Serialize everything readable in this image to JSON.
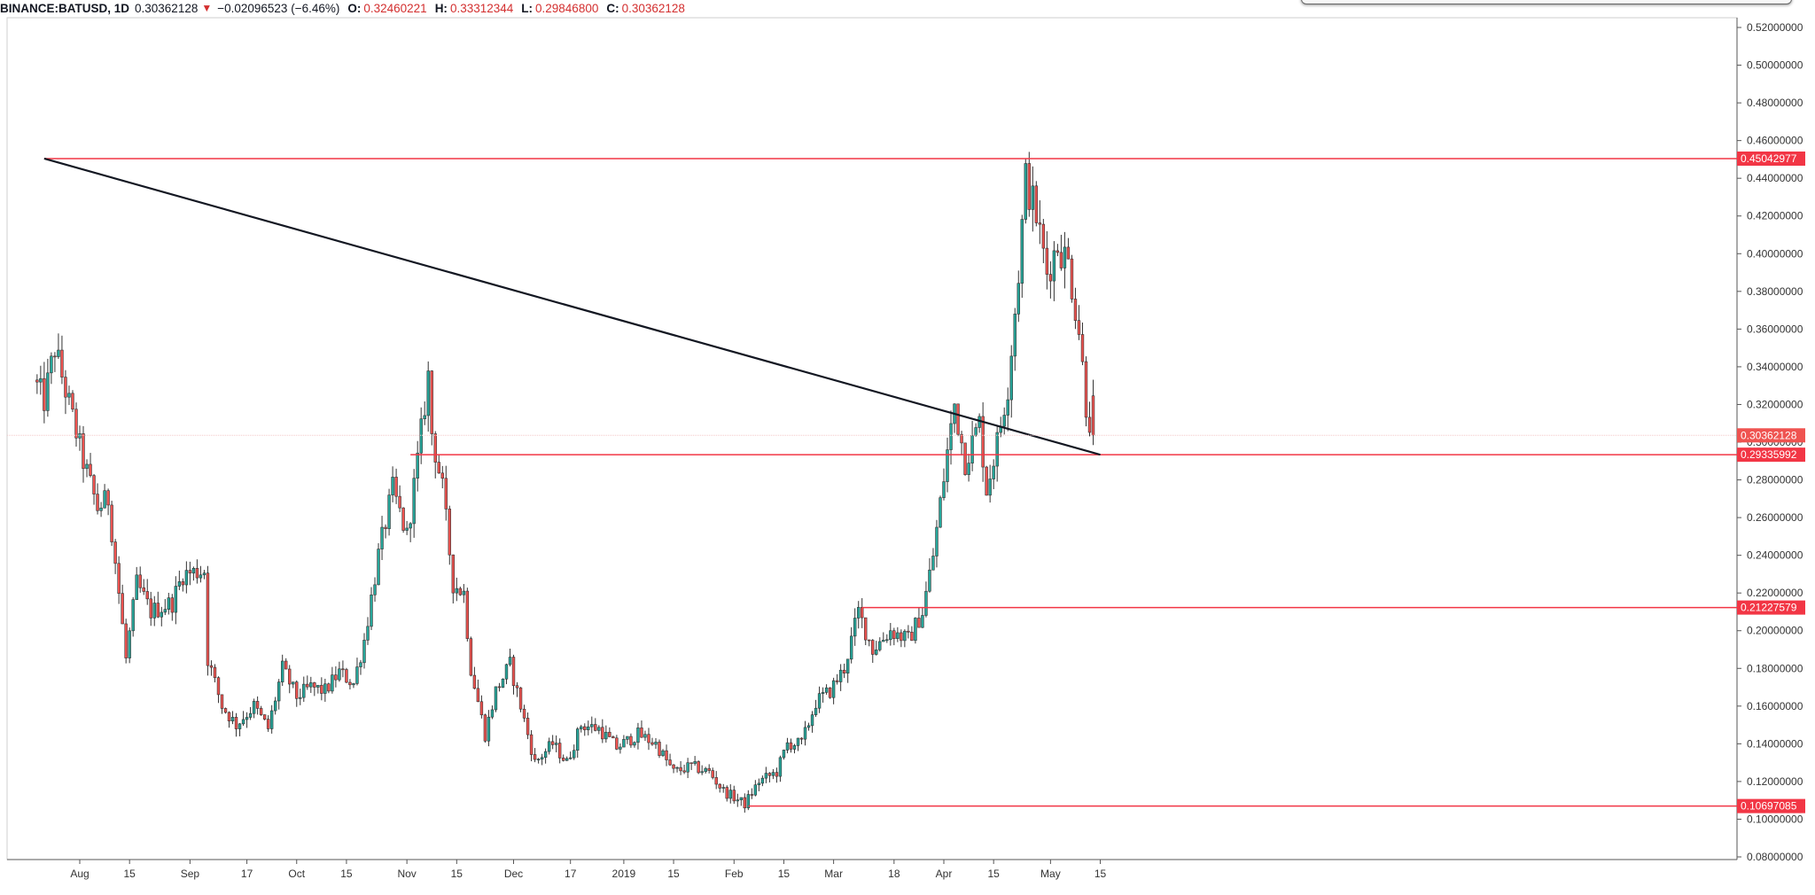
{
  "header": {
    "symbol": "BINANCE:BATUSD, 1D",
    "last": "0.30362128",
    "direction_icon": "triangle-down-icon",
    "change": "−0.02096523 (−6.46%)",
    "open_label": "O:",
    "open": "0.32460221",
    "high_label": "H:",
    "high": "0.33312344",
    "low_label": "L:",
    "low": "0.29846800",
    "close_label": "C:",
    "close": "0.30362128"
  },
  "colors": {
    "up": "#26a69a",
    "down": "#ef5350",
    "level_line": "#f23645",
    "trend_line": "#131722",
    "current_price": "#ef5350"
  },
  "chart_data": {
    "type": "candlestick",
    "symbol": "BINANCE:BATUSD",
    "interval": "1D",
    "ylim": [
      0.08,
      0.52
    ],
    "y_ticks": [
      "0.52000000",
      "0.50000000",
      "0.48000000",
      "0.46000000",
      "0.44000000",
      "0.42000000",
      "0.40000000",
      "0.38000000",
      "0.36000000",
      "0.34000000",
      "0.32000000",
      "0.30000000",
      "0.28000000",
      "0.26000000",
      "0.24000000",
      "0.22000000",
      "0.20000000",
      "0.18000000",
      "0.16000000",
      "0.14000000",
      "0.12000000",
      "0.10000000",
      "0.08000000"
    ],
    "x_ticks": [
      {
        "label": "Aug",
        "date": "2018-08-01"
      },
      {
        "label": "15",
        "date": "2018-08-15"
      },
      {
        "label": "Sep",
        "date": "2018-09-01"
      },
      {
        "label": "17",
        "date": "2018-09-17"
      },
      {
        "label": "Oct",
        "date": "2018-10-01"
      },
      {
        "label": "15",
        "date": "2018-10-15"
      },
      {
        "label": "Nov",
        "date": "2018-11-01"
      },
      {
        "label": "15",
        "date": "2018-11-15"
      },
      {
        "label": "Dec",
        "date": "2018-12-01"
      },
      {
        "label": "17",
        "date": "2018-12-17"
      },
      {
        "label": "2019",
        "date": "2019-01-01"
      },
      {
        "label": "15",
        "date": "2019-01-15"
      },
      {
        "label": "Feb",
        "date": "2019-02-01"
      },
      {
        "label": "15",
        "date": "2019-02-15"
      },
      {
        "label": "Mar",
        "date": "2019-03-01"
      },
      {
        "label": "18",
        "date": "2019-03-18"
      },
      {
        "label": "Apr",
        "date": "2019-04-01"
      },
      {
        "label": "15",
        "date": "2019-04-15"
      },
      {
        "label": "May",
        "date": "2019-05-01"
      },
      {
        "label": "15",
        "date": "2019-05-15"
      }
    ],
    "price_path": [
      [
        "2018-07-19",
        0.333
      ],
      [
        "2018-07-22",
        0.322
      ],
      [
        "2018-07-25",
        0.35
      ],
      [
        "2018-07-29",
        0.32
      ],
      [
        "2018-08-02",
        0.29
      ],
      [
        "2018-08-06",
        0.265
      ],
      [
        "2018-08-09",
        0.27
      ],
      [
        "2018-08-12",
        0.22
      ],
      [
        "2018-08-14",
        0.185
      ],
      [
        "2018-08-17",
        0.225
      ],
      [
        "2018-08-21",
        0.21
      ],
      [
        "2018-08-27",
        0.215
      ],
      [
        "2018-08-30",
        0.23
      ],
      [
        "2018-09-05",
        0.232
      ],
      [
        "2018-09-06",
        0.185
      ],
      [
        "2018-09-10",
        0.16
      ],
      [
        "2018-09-14",
        0.15
      ],
      [
        "2018-09-19",
        0.16
      ],
      [
        "2018-09-23",
        0.148
      ],
      [
        "2018-09-27",
        0.18
      ],
      [
        "2018-10-01",
        0.165
      ],
      [
        "2018-10-05",
        0.17
      ],
      [
        "2018-10-09",
        0.168
      ],
      [
        "2018-10-13",
        0.178
      ],
      [
        "2018-10-17",
        0.172
      ],
      [
        "2018-10-20",
        0.195
      ],
      [
        "2018-10-24",
        0.24
      ],
      [
        "2018-10-28",
        0.275
      ],
      [
        "2018-11-01",
        0.25
      ],
      [
        "2018-11-04",
        0.29
      ],
      [
        "2018-11-07",
        0.335
      ],
      [
        "2018-11-08",
        0.305
      ],
      [
        "2018-11-11",
        0.275
      ],
      [
        "2018-11-14",
        0.225
      ],
      [
        "2018-11-17",
        0.22
      ],
      [
        "2018-11-19",
        0.18
      ],
      [
        "2018-11-23",
        0.145
      ],
      [
        "2018-11-26",
        0.168
      ],
      [
        "2018-11-30",
        0.182
      ],
      [
        "2018-12-03",
        0.16
      ],
      [
        "2018-12-07",
        0.13
      ],
      [
        "2018-12-12",
        0.14
      ],
      [
        "2018-12-16",
        0.13
      ],
      [
        "2018-12-20",
        0.15
      ],
      [
        "2018-12-25",
        0.148
      ],
      [
        "2018-12-30",
        0.138
      ],
      [
        "2019-01-05",
        0.145
      ],
      [
        "2019-01-10",
        0.14
      ],
      [
        "2019-01-15",
        0.125
      ],
      [
        "2019-01-20",
        0.128
      ],
      [
        "2019-01-25",
        0.125
      ],
      [
        "2019-01-29",
        0.115
      ],
      [
        "2019-02-04",
        0.108
      ],
      [
        "2019-02-08",
        0.12
      ],
      [
        "2019-02-13",
        0.125
      ],
      [
        "2019-02-16",
        0.14
      ],
      [
        "2019-02-20",
        0.14
      ],
      [
        "2019-02-24",
        0.162
      ],
      [
        "2019-02-28",
        0.168
      ],
      [
        "2019-03-04",
        0.18
      ],
      [
        "2019-03-08",
        0.21
      ],
      [
        "2019-03-12",
        0.19
      ],
      [
        "2019-03-17",
        0.2
      ],
      [
        "2019-03-22",
        0.195
      ],
      [
        "2019-03-26",
        0.21
      ],
      [
        "2019-03-29",
        0.24
      ],
      [
        "2019-04-02",
        0.295
      ],
      [
        "2019-04-04",
        0.32
      ],
      [
        "2019-04-07",
        0.29
      ],
      [
        "2019-04-11",
        0.31
      ],
      [
        "2019-04-13",
        0.275
      ],
      [
        "2019-04-16",
        0.3
      ],
      [
        "2019-04-19",
        0.33
      ],
      [
        "2019-04-22",
        0.39
      ],
      [
        "2019-04-24",
        0.44
      ],
      [
        "2019-04-27",
        0.42
      ],
      [
        "2019-04-30",
        0.39
      ],
      [
        "2019-05-03",
        0.405
      ],
      [
        "2019-05-06",
        0.395
      ],
      [
        "2019-05-09",
        0.36
      ],
      [
        "2019-05-11",
        0.32
      ],
      [
        "2019-05-13",
        0.3036
      ]
    ],
    "horizontal_levels": [
      {
        "label": "0.45042977",
        "value": 0.45042977,
        "from": "2018-07-22"
      },
      {
        "label": "0.29335992",
        "value": 0.29335992,
        "from": "2018-11-02"
      },
      {
        "label": "0.21227579",
        "value": 0.21227579,
        "from": "2019-03-09"
      },
      {
        "label": "0.10697085",
        "value": 0.10697085,
        "from": "2019-02-05"
      }
    ],
    "trend_line": [
      [
        "2018-07-22",
        0.45042977
      ],
      [
        "2019-05-15",
        0.29335992
      ]
    ],
    "current_price": {
      "label": "0.30362128",
      "value": 0.30362128
    },
    "grid": false
  }
}
